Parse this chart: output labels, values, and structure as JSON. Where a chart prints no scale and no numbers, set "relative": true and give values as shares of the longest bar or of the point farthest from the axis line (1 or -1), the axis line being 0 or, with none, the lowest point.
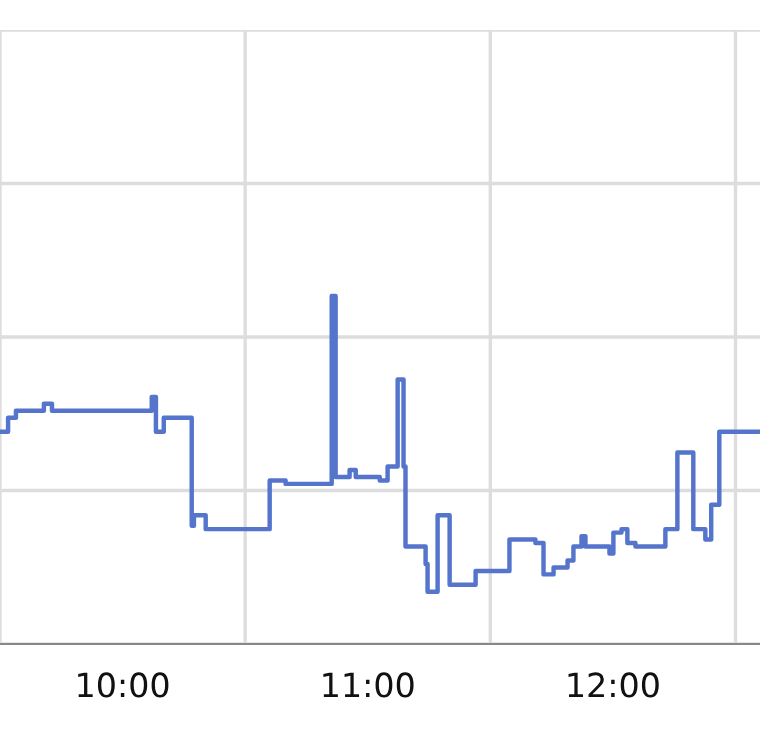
{
  "chart_data": {
    "type": "step",
    "relative": true,
    "grid": true,
    "tick_labels": "x",
    "xlim": [
      9.5,
      12.6
    ],
    "xticks": [
      {
        "value": 9.5,
        "label": null
      },
      {
        "value": 10,
        "label": "10:00"
      },
      {
        "value": 10.5,
        "label": null
      },
      {
        "value": 11,
        "label": "11:00"
      },
      {
        "value": 11.5,
        "label": null
      },
      {
        "value": 12,
        "label": "12:00"
      },
      {
        "value": 12.5,
        "label": null
      }
    ],
    "x": [
      9.5,
      9.533,
      9.565,
      9.679,
      9.712,
      10.119,
      10.136,
      10.168,
      10.282,
      10.291,
      10.339,
      10.6,
      10.665,
      10.853,
      10.869,
      10.926,
      10.951,
      11.049,
      11.081,
      11.122,
      11.146,
      11.154,
      11.236,
      11.244,
      11.285,
      11.334,
      11.44,
      11.578,
      11.684,
      11.717,
      11.758,
      11.815,
      11.839,
      11.872,
      11.888,
      11.986,
      12.002,
      12.035,
      12.059,
      12.092,
      12.214,
      12.263,
      12.328,
      12.377,
      12.401,
      12.434,
      12.597
    ],
    "series": [
      {
        "color": "#5575cc",
        "values": [
          0.61,
          0.65,
          0.67,
          0.69,
          0.67,
          0.71,
          0.61,
          0.65,
          0.34,
          0.37,
          0.33,
          0.47,
          0.46,
          1.0,
          0.48,
          0.5,
          0.48,
          0.47,
          0.51,
          0.76,
          0.51,
          0.28,
          0.23,
          0.15,
          0.37,
          0.17,
          0.21,
          0.3,
          0.29,
          0.2,
          0.22,
          0.24,
          0.28,
          0.31,
          0.28,
          0.26,
          0.32,
          0.33,
          0.29,
          0.28,
          0.33,
          0.55,
          0.33,
          0.3,
          0.4,
          0.61,
          0.61
        ]
      }
    ]
  }
}
